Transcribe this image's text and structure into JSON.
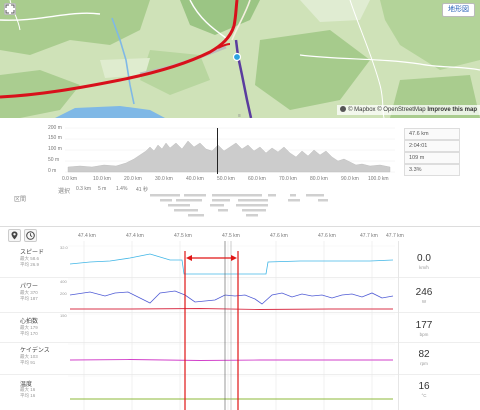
{
  "map": {
    "type_button": "地形図",
    "attribution_prefix": "© Mapbox © OpenStreetMap ",
    "attribution_link": "Improve this map",
    "handle": "≡"
  },
  "elevation": {
    "y_ticks": [
      "200 m",
      "150 m",
      "100 m",
      "50 m",
      "0 m"
    ],
    "x_ticks": [
      "0.0 km",
      "10.0 km",
      "20.0 km",
      "30.0 km",
      "40.0 km",
      "50.0 km",
      "60.0 km",
      "70.0 km",
      "80.0 km",
      "90.0 km",
      "100.0 km"
    ],
    "section_label": "区間",
    "selection_label": "選択",
    "selection_stats": [
      "0.3 km",
      "5 m",
      "1.4%",
      "41 秒"
    ],
    "readout": [
      "47.6 km",
      "2:04:01",
      "109 m",
      "3.3%"
    ]
  },
  "detail": {
    "x_ticks": [
      "47.4 km",
      "47.4 km",
      "47.5 km",
      "47.5 km",
      "47.6 km",
      "47.6 km",
      "47.7 km",
      "47.7 km"
    ],
    "metrics": [
      {
        "label": "スピード",
        "max": "最大 58.6",
        "avg": "平均 26.9",
        "value": "0.0",
        "unit": "km/h",
        "axis_top": "32.0",
        "axis_mid": "",
        "color": "#41b6e6"
      },
      {
        "label": "パワー",
        "max": "最大 370",
        "avg": "平均 187",
        "value": "246",
        "unit": "W",
        "axis_top": "400",
        "axis_mid": "200",
        "color": "#4f5bd5"
      },
      {
        "label": "心拍数",
        "max": "最大 179",
        "avg": "平均 170",
        "value": "177",
        "unit": "bpm",
        "axis_top": "",
        "axis_mid": "150",
        "color": "#d9334a"
      },
      {
        "label": "ケイデンス",
        "max": "最大 103",
        "avg": "平均 91",
        "value": "82",
        "unit": "rpm",
        "axis_top": "",
        "axis_mid": "",
        "color": "#d13fc9"
      },
      {
        "label": "温度",
        "max": "最大 16",
        "avg": "平均 16",
        "value": "16",
        "unit": "°C",
        "axis_top": "",
        "axis_mid": "",
        "color": "#8cb83a"
      }
    ],
    "pin_icon": "pin-icon",
    "clock_icon": "clock-icon"
  },
  "colors": {
    "route_red": "#d8101b",
    "route_purple": "#5a3c9e",
    "selection_red": "#e01515",
    "map_marker": "#2ba3df"
  }
}
